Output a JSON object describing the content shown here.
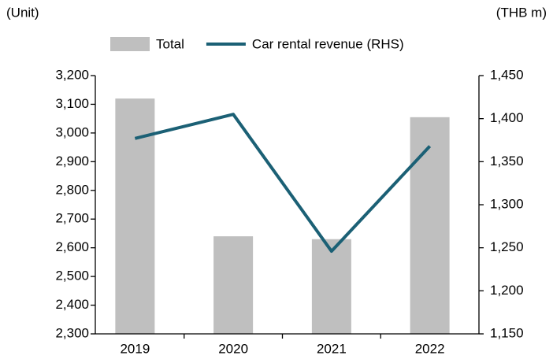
{
  "chart_data": {
    "type": "bar_line",
    "y_label": "(Unit)",
    "y2_label": "(THB m)",
    "categories": [
      "2019",
      "2020",
      "2021",
      "2022"
    ],
    "series": [
      {
        "name": "Total",
        "color": "#bfbfbf",
        "type": "bar",
        "values": [
          3120,
          2640,
          2630,
          3055
        ]
      },
      {
        "name": "Car rental revenue (RHS)",
        "color": "#1b6075",
        "type": "line",
        "axis": "y2",
        "values": [
          1377,
          1405,
          1246,
          1368
        ]
      }
    ],
    "ylim": [
      2300,
      3200
    ],
    "yticks": [
      {
        "value": 2300,
        "label": "2,300"
      },
      {
        "value": 2400,
        "label": "2,400"
      },
      {
        "value": 2500,
        "label": "2,500"
      },
      {
        "value": 2600,
        "label": "2,600"
      },
      {
        "value": 2700,
        "label": "2,700"
      },
      {
        "value": 2800,
        "label": "2,800"
      },
      {
        "value": 2900,
        "label": "2,900"
      },
      {
        "value": 3000,
        "label": "3,000"
      },
      {
        "value": 3100,
        "label": "3,100"
      },
      {
        "value": 3200,
        "label": "3,200"
      }
    ],
    "y2lim": [
      1150,
      1450
    ],
    "y2ticks": [
      {
        "value": 1150,
        "label": "1,150"
      },
      {
        "value": 1200,
        "label": "1,200"
      },
      {
        "value": 1250,
        "label": "1,250"
      },
      {
        "value": 1300,
        "label": "1,300"
      },
      {
        "value": 1350,
        "label": "1,350"
      },
      {
        "value": 1400,
        "label": "1,400"
      },
      {
        "value": 1450,
        "label": "1,450"
      }
    ],
    "legend": "top",
    "grid": false
  }
}
